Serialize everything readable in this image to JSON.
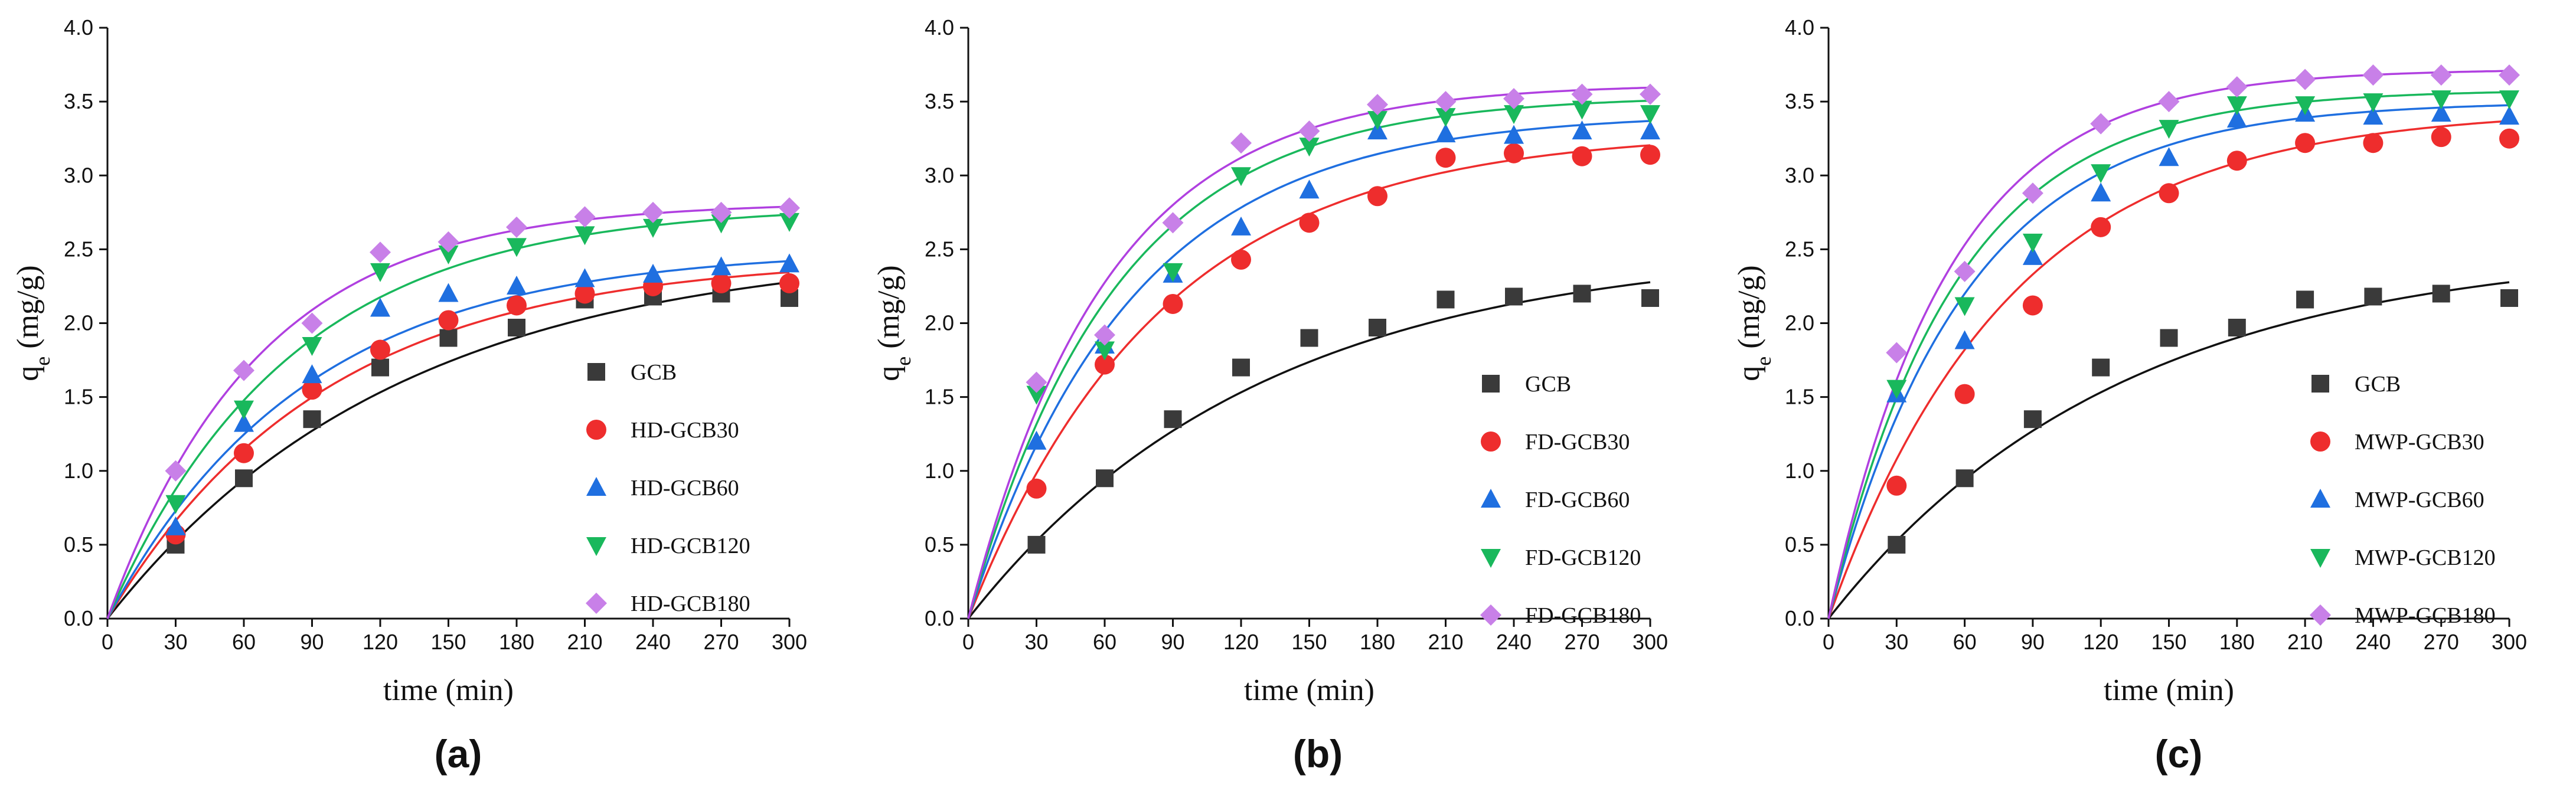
{
  "chart_data": [
    {
      "type": "scatter",
      "panel_label": "(a)",
      "xlabel": "time (min)",
      "ylabel_main": "q",
      "ylabel_sub": "e",
      "ylabel_unit": " (mg/g)",
      "xlim": [
        0,
        300
      ],
      "ylim": [
        0,
        4.0
      ],
      "xticks": [
        0,
        30,
        60,
        90,
        120,
        150,
        180,
        210,
        240,
        270,
        300
      ],
      "yticks": [
        0.0,
        0.5,
        1.0,
        1.5,
        2.0,
        2.5,
        3.0,
        3.5,
        4.0
      ],
      "ytick_labels": [
        "0.0",
        "0.5",
        "1.0",
        "1.5",
        "2.0",
        "2.5",
        "3.0",
        "3.5",
        "4.0"
      ],
      "legend_position": "center-right",
      "x": [
        30,
        60,
        90,
        120,
        150,
        180,
        210,
        240,
        270,
        300
      ],
      "series": [
        {
          "name": "GCB",
          "marker": "square",
          "color": "#3a3a3a",
          "line_color": "#111111",
          "values": [
            0.5,
            0.95,
            1.35,
            1.7,
            1.9,
            1.97,
            2.16,
            2.18,
            2.2,
            2.17
          ],
          "fit": {
            "qe": 2.52,
            "k": 0.0078
          }
        },
        {
          "name": "HD-GCB30",
          "marker": "circle",
          "color": "#ee2d2d",
          "line_color": "#ee2d2d",
          "values": [
            0.57,
            1.12,
            1.55,
            1.82,
            2.02,
            2.12,
            2.2,
            2.25,
            2.27,
            2.27
          ],
          "fit": {
            "qe": 2.45,
            "k": 0.0105
          }
        },
        {
          "name": "HD-GCB60",
          "marker": "triangle-up",
          "color": "#1f6fe0",
          "line_color": "#1f6fe0",
          "values": [
            0.62,
            1.32,
            1.65,
            2.1,
            2.2,
            2.25,
            2.3,
            2.33,
            2.38,
            2.4
          ],
          "fit": {
            "qe": 2.5,
            "k": 0.0115
          }
        },
        {
          "name": "HD-GCB120",
          "marker": "triangle-down",
          "color": "#19b85c",
          "line_color": "#19b85c",
          "values": [
            0.78,
            1.42,
            1.85,
            2.35,
            2.47,
            2.52,
            2.6,
            2.65,
            2.68,
            2.69
          ],
          "fit": {
            "qe": 2.8,
            "k": 0.0125
          }
        },
        {
          "name": "HD-GCB180",
          "marker": "diamond",
          "color": "#c880e8",
          "line_color": "#b040e0",
          "values": [
            1.0,
            1.68,
            2.0,
            2.48,
            2.55,
            2.65,
            2.72,
            2.75,
            2.75,
            2.78
          ],
          "fit": {
            "qe": 2.82,
            "k": 0.015
          }
        }
      ]
    },
    {
      "type": "scatter",
      "panel_label": "(b)",
      "xlabel": "time (min)",
      "ylabel_main": "q",
      "ylabel_sub": "e",
      "ylabel_unit": " (mg/g)",
      "xlim": [
        0,
        300
      ],
      "ylim": [
        0,
        4.0
      ],
      "xticks": [
        0,
        30,
        60,
        90,
        120,
        150,
        180,
        210,
        240,
        270,
        300
      ],
      "yticks": [
        0.0,
        0.5,
        1.0,
        1.5,
        2.0,
        2.5,
        3.0,
        3.5,
        4.0
      ],
      "ytick_labels": [
        "0.0",
        "0.5",
        "1.0",
        "1.5",
        "2.0",
        "2.5",
        "3.0",
        "3.5",
        "4.0"
      ],
      "legend_position": "bottom-right",
      "x": [
        30,
        60,
        90,
        120,
        150,
        180,
        210,
        240,
        270,
        300
      ],
      "series": [
        {
          "name": "GCB",
          "marker": "square",
          "color": "#3a3a3a",
          "line_color": "#111111",
          "values": [
            0.5,
            0.95,
            1.35,
            1.7,
            1.9,
            1.97,
            2.16,
            2.18,
            2.2,
            2.17
          ],
          "fit": {
            "qe": 2.52,
            "k": 0.0078
          }
        },
        {
          "name": "FD-GCB30",
          "marker": "circle",
          "color": "#ee2d2d",
          "line_color": "#ee2d2d",
          "values": [
            0.88,
            1.72,
            2.13,
            2.43,
            2.68,
            2.86,
            3.12,
            3.15,
            3.13,
            3.14
          ],
          "fit": {
            "qe": 3.3,
            "k": 0.0118
          }
        },
        {
          "name": "FD-GCB60",
          "marker": "triangle-up",
          "color": "#1f6fe0",
          "line_color": "#1f6fe0",
          "values": [
            1.2,
            1.85,
            2.33,
            2.65,
            2.9,
            3.3,
            3.28,
            3.27,
            3.3,
            3.3
          ],
          "fit": {
            "qe": 3.42,
            "k": 0.014
          }
        },
        {
          "name": "FD-GCB120",
          "marker": "triangle-down",
          "color": "#19b85c",
          "line_color": "#19b85c",
          "values": [
            1.52,
            1.82,
            2.35,
            3.0,
            3.2,
            3.38,
            3.4,
            3.42,
            3.45,
            3.42
          ],
          "fit": {
            "qe": 3.54,
            "k": 0.0155
          }
        },
        {
          "name": "FD-GCB180",
          "marker": "diamond",
          "color": "#c880e8",
          "line_color": "#b040e0",
          "values": [
            1.6,
            1.92,
            2.68,
            3.22,
            3.3,
            3.48,
            3.5,
            3.52,
            3.55,
            3.55
          ],
          "fit": {
            "qe": 3.62,
            "k": 0.0165
          }
        }
      ]
    },
    {
      "type": "scatter",
      "panel_label": "(c)",
      "xlabel": "time (min)",
      "ylabel_main": "q",
      "ylabel_sub": "e",
      "ylabel_unit": " (mg/g)",
      "xlim": [
        0,
        300
      ],
      "ylim": [
        0,
        4.0
      ],
      "xticks": [
        0,
        30,
        60,
        90,
        120,
        150,
        180,
        210,
        240,
        270,
        300
      ],
      "yticks": [
        0.0,
        0.5,
        1.0,
        1.5,
        2.0,
        2.5,
        3.0,
        3.5,
        4.0
      ],
      "ytick_labels": [
        "0.0",
        "0.5",
        "1.0",
        "1.5",
        "2.0",
        "2.5",
        "3.0",
        "3.5",
        "4.0"
      ],
      "legend_position": "bottom-right",
      "x": [
        30,
        60,
        90,
        120,
        150,
        180,
        210,
        240,
        270,
        300
      ],
      "series": [
        {
          "name": "GCB",
          "marker": "square",
          "color": "#3a3a3a",
          "line_color": "#111111",
          "values": [
            0.5,
            0.95,
            1.35,
            1.7,
            1.9,
            1.97,
            2.16,
            2.18,
            2.2,
            2.17
          ],
          "fit": {
            "qe": 2.52,
            "k": 0.0078
          }
        },
        {
          "name": "MWP-GCB30",
          "marker": "circle",
          "color": "#ee2d2d",
          "line_color": "#ee2d2d",
          "values": [
            0.9,
            1.52,
            2.12,
            2.65,
            2.88,
            3.1,
            3.22,
            3.22,
            3.26,
            3.25
          ],
          "fit": {
            "qe": 3.45,
            "k": 0.0125
          }
        },
        {
          "name": "MWP-GCB60",
          "marker": "triangle-up",
          "color": "#1f6fe0",
          "line_color": "#1f6fe0",
          "values": [
            1.52,
            1.88,
            2.45,
            2.88,
            3.12,
            3.38,
            3.42,
            3.4,
            3.42,
            3.4
          ],
          "fit": {
            "qe": 3.5,
            "k": 0.0165
          }
        },
        {
          "name": "MWP-GCB120",
          "marker": "triangle-down",
          "color": "#19b85c",
          "line_color": "#19b85c",
          "values": [
            1.56,
            2.12,
            2.55,
            3.02,
            3.32,
            3.48,
            3.48,
            3.5,
            3.52,
            3.52
          ],
          "fit": {
            "qe": 3.58,
            "k": 0.018
          }
        },
        {
          "name": "MWP-GCB180",
          "marker": "diamond",
          "color": "#c880e8",
          "line_color": "#b040e0",
          "values": [
            1.8,
            2.35,
            2.88,
            3.35,
            3.5,
            3.6,
            3.65,
            3.68,
            3.68,
            3.68
          ],
          "fit": {
            "qe": 3.72,
            "k": 0.019
          }
        }
      ]
    }
  ]
}
